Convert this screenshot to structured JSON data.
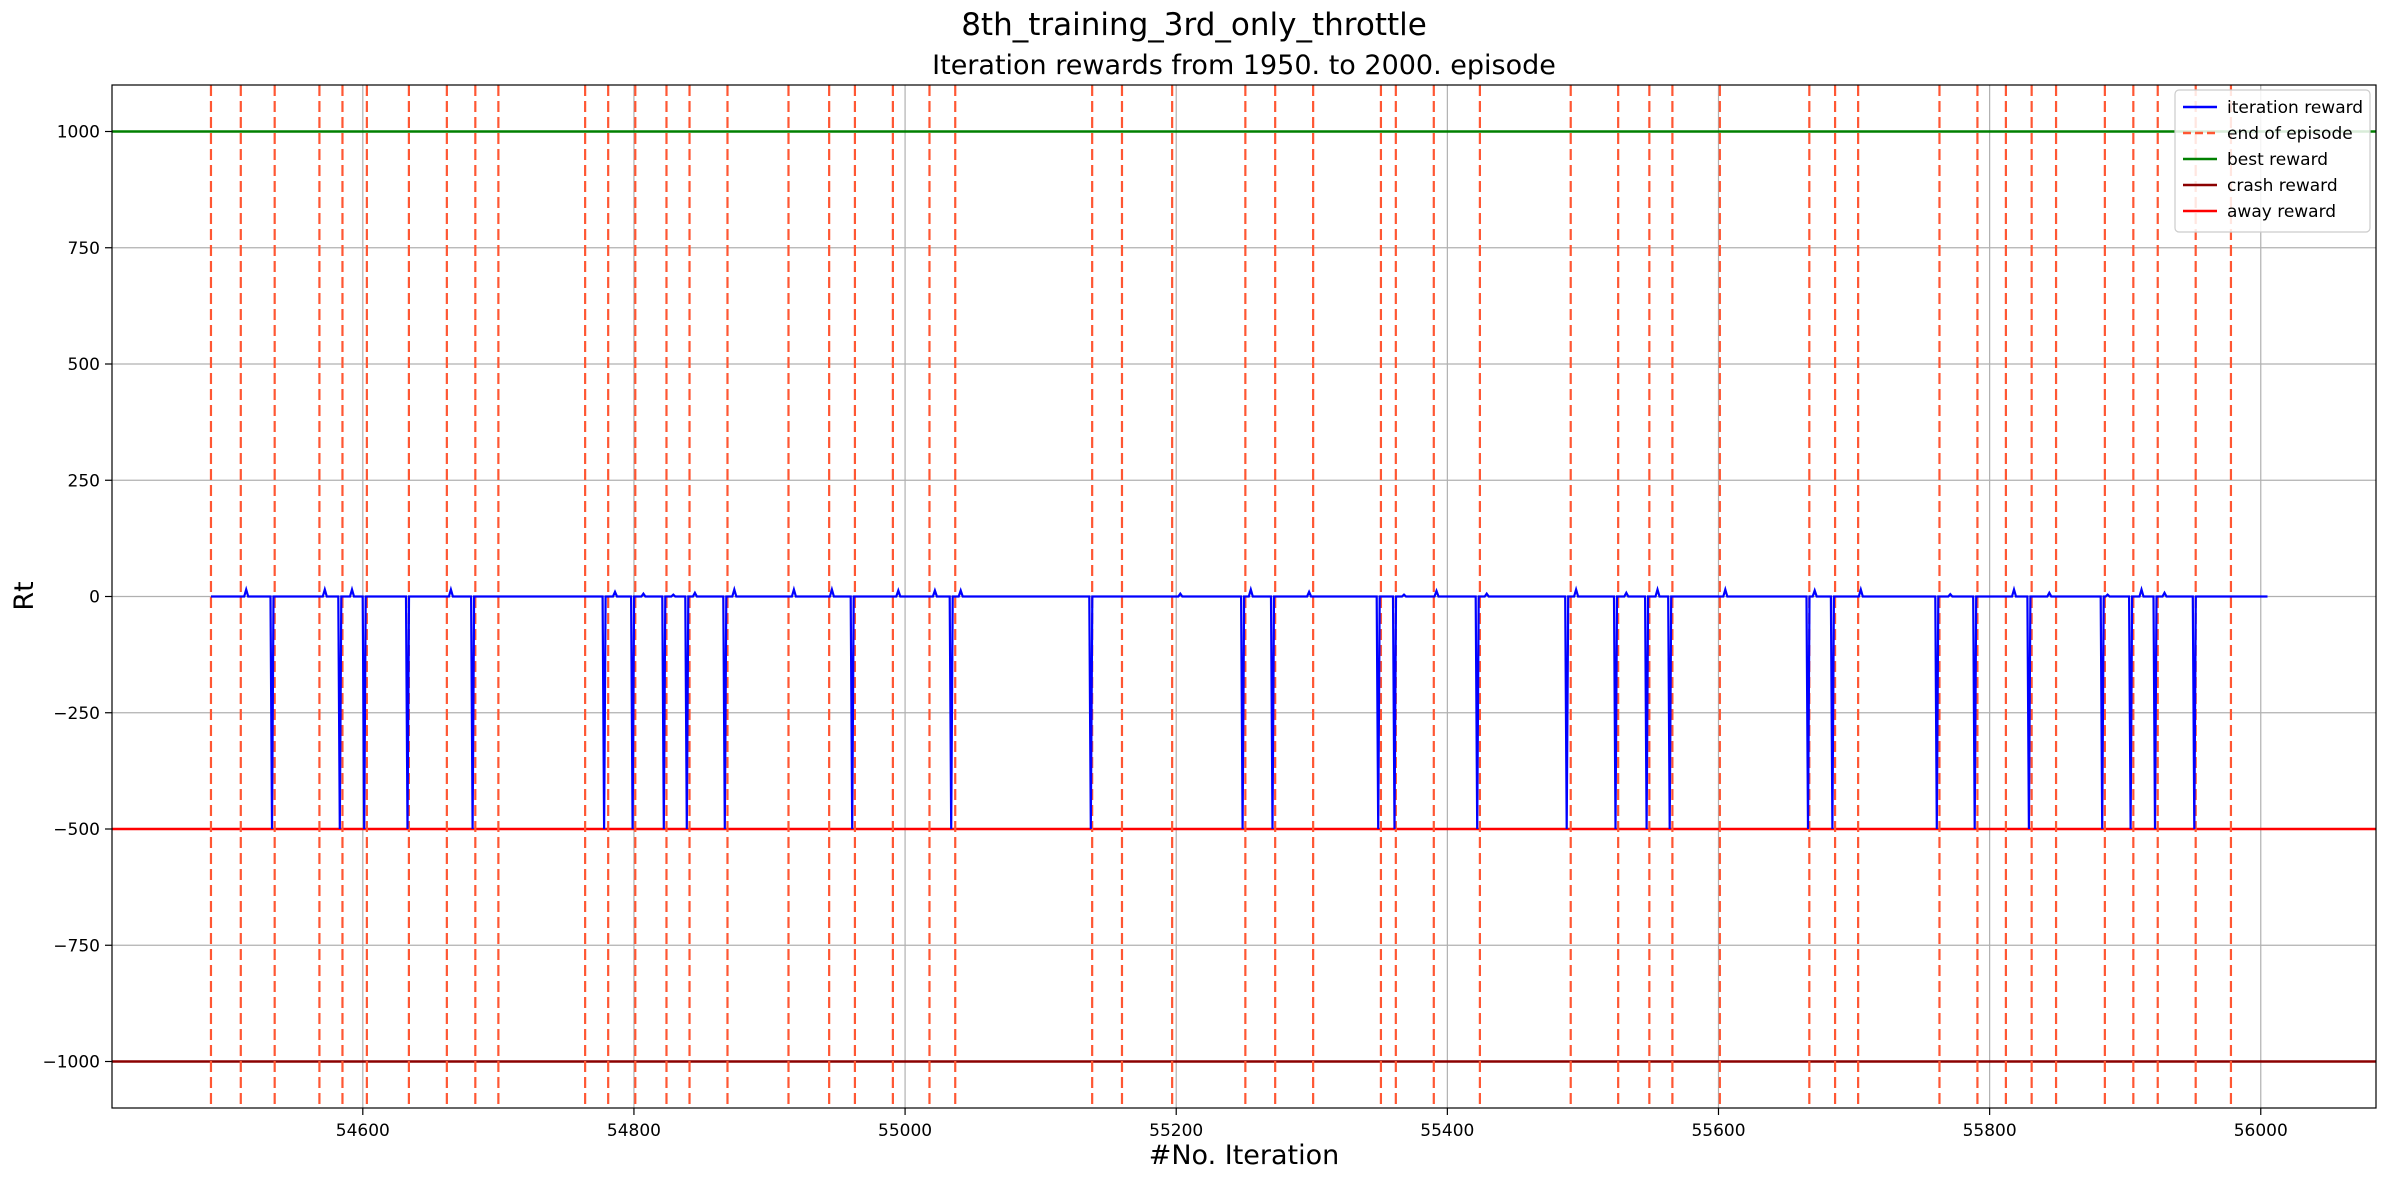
{
  "chart_data": {
    "type": "line",
    "suptitle": "8th_training_3rd_only_throttle",
    "title": "Iteration rewards from 1950. to 2000. episode",
    "xlabel": "#No. Iteration",
    "ylabel": "Rt",
    "xlim": [
      54415,
      56085
    ],
    "ylim": [
      -1100,
      1100
    ],
    "xticks": [
      54600,
      54800,
      55000,
      55200,
      55400,
      55600,
      55800,
      56000
    ],
    "yticks": [
      -1000,
      -750,
      -500,
      -250,
      0,
      250,
      500,
      750,
      1000
    ],
    "tick_labels_x": [
      "54600",
      "54800",
      "55000",
      "55200",
      "55400",
      "55600",
      "55800",
      "56000"
    ],
    "tick_labels_y": [
      "−1000",
      "−750",
      "−500",
      "−250",
      "0",
      "250",
      "500",
      "750",
      "1000"
    ],
    "grid": true,
    "legend_position": "top-right",
    "series": [
      {
        "name": "iteration reward",
        "color": "#0000ff",
        "style": "solid"
      },
      {
        "name": "end of episode",
        "color": "#ff5733",
        "style": "dashed"
      },
      {
        "name": "best reward",
        "color": "#008000",
        "style": "solid",
        "value": 1000
      },
      {
        "name": "crash reward",
        "color": "#8b0000",
        "style": "solid",
        "value": -1000
      },
      {
        "name": "away reward",
        "color": "#ff0000",
        "style": "solid",
        "value": -500
      }
    ],
    "iteration_reward": {
      "x_start": 54488,
      "x_end": 56005,
      "baseline": 0,
      "crash_drops": [
        54533,
        54583,
        54601,
        54633,
        54681,
        54778,
        54799,
        54822,
        54839,
        54867,
        54961,
        55034,
        55137,
        55249,
        55271,
        55349,
        55361,
        55422,
        55488,
        55524,
        55547,
        55564,
        55666,
        55684,
        55761,
        55789,
        55829,
        55883,
        55904,
        55922,
        55951
      ],
      "crash_value": -500,
      "spikes": [
        {
          "x": 54514,
          "y": 15
        },
        {
          "x": 54572,
          "y": 15
        },
        {
          "x": 54592,
          "y": 15
        },
        {
          "x": 54665,
          "y": 15
        },
        {
          "x": 54786,
          "y": 10
        },
        {
          "x": 54807,
          "y": 6
        },
        {
          "x": 54829,
          "y": 4
        },
        {
          "x": 54845,
          "y": 8
        },
        {
          "x": 54874,
          "y": 15
        },
        {
          "x": 54918,
          "y": 15
        },
        {
          "x": 54946,
          "y": 15
        },
        {
          "x": 54995,
          "y": 13
        },
        {
          "x": 55022,
          "y": 13
        },
        {
          "x": 55041,
          "y": 13
        },
        {
          "x": 55203,
          "y": 6
        },
        {
          "x": 55255,
          "y": 15
        },
        {
          "x": 55298,
          "y": 10
        },
        {
          "x": 55368,
          "y": 4
        },
        {
          "x": 55392,
          "y": 12
        },
        {
          "x": 55429,
          "y": 6
        },
        {
          "x": 55495,
          "y": 15
        },
        {
          "x": 55532,
          "y": 8
        },
        {
          "x": 55555,
          "y": 15
        },
        {
          "x": 55605,
          "y": 15
        },
        {
          "x": 55671,
          "y": 13
        },
        {
          "x": 55705,
          "y": 15
        },
        {
          "x": 55771,
          "y": 5
        },
        {
          "x": 55818,
          "y": 15
        },
        {
          "x": 55844,
          "y": 8
        },
        {
          "x": 55887,
          "y": 4
        },
        {
          "x": 55912,
          "y": 15
        },
        {
          "x": 55929,
          "y": 8
        }
      ]
    },
    "end_of_episode_x": [
      54488,
      54510,
      54535,
      54568,
      54585,
      54603,
      54634,
      54662,
      54683,
      54700,
      54764,
      54781,
      54801,
      54824,
      54841,
      54869,
      54914,
      54944,
      54963,
      54991,
      55018,
      55037,
      55138,
      55160,
      55197,
      55251,
      55273,
      55301,
      55351,
      55362,
      55390,
      55424,
      55491,
      55526,
      55549,
      55566,
      55601,
      55667,
      55686,
      55703,
      55763,
      55791,
      55812,
      55831,
      55849,
      55885,
      55906,
      55924,
      55952,
      55978
    ]
  }
}
